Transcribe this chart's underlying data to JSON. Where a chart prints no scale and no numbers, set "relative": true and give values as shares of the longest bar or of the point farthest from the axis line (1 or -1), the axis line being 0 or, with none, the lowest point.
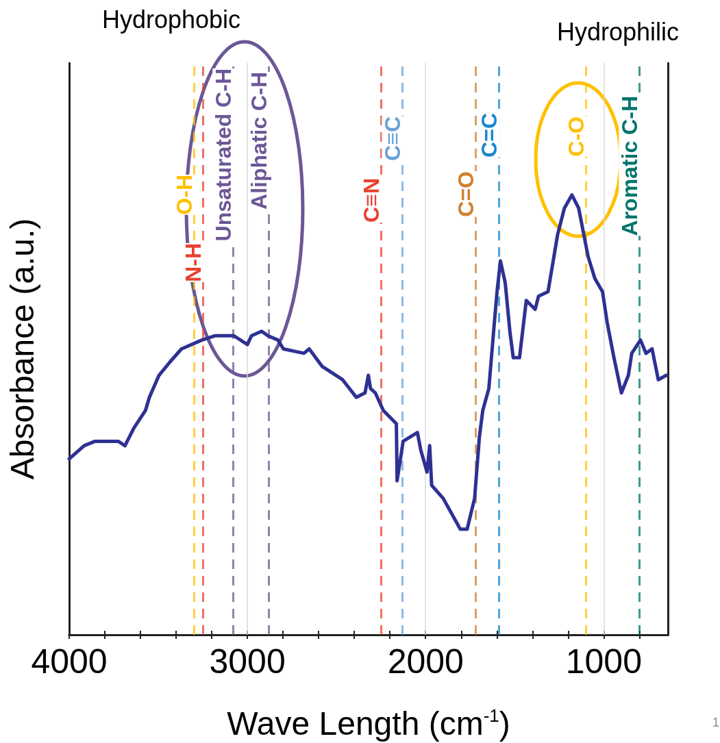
{
  "chart_data": {
    "type": "line",
    "relative": true,
    "xlabel": "Wave Length (cm$^{-1}$)",
    "ylabel": "Absorbance (a.u.)",
    "annotations": [
      "Hydrophobic",
      "Hydrophilic",
      "1"
    ],
    "xlim": [
      4000,
      640
    ],
    "xticks": [
      4000,
      {
        "value": 3800,
        "label": null
      },
      {
        "value": 3600,
        "label": null
      },
      {
        "value": 3400,
        "label": null
      },
      {
        "value": 3200,
        "label": null
      },
      3000,
      {
        "value": 2800,
        "label": null
      },
      {
        "value": 2600,
        "label": null
      },
      {
        "value": 2400,
        "label": null
      },
      {
        "value": 2200,
        "label": null
      },
      2000,
      {
        "value": 1800,
        "label": null
      },
      {
        "value": 1600,
        "label": null
      },
      {
        "value": 1400,
        "label": null
      },
      {
        "value": 1200,
        "label": null
      },
      1000,
      {
        "value": 800,
        "label": null
      }
    ],
    "grid": "x",
    "marker": "none",
    "line_style": "solid",
    "x": [
      4000,
      3916,
      3855,
      3763,
      3725,
      3687,
      3637,
      3572,
      3550,
      3496,
      3435,
      3370,
      3256,
      3179,
      3076,
      3000,
      2977,
      2920,
      2885,
      2828,
      2798,
      2683,
      2653,
      2580,
      2466,
      2389,
      2340,
      2321,
      2309,
      2282,
      2237,
      2164,
      2160,
      2126,
      2046,
      2027,
      1992,
      1977,
      1966,
      1901,
      1805,
      1767,
      1725,
      1698,
      1679,
      1645,
      1614,
      1599,
      1580,
      1553,
      1527,
      1508,
      1473,
      1435,
      1385,
      1366,
      1313,
      1259,
      1221,
      1179,
      1141,
      1088,
      1050,
      1007,
      981,
      943,
      901,
      862,
      843,
      794,
      763,
      729,
      694,
      649
    ],
    "series": [
      {
        "color": "#2e3192",
        "values": [
          0.4,
          0.43,
          0.44,
          0.44,
          0.44,
          0.43,
          0.47,
          0.51,
          0.54,
          0.59,
          0.62,
          0.65,
          0.67,
          0.68,
          0.68,
          0.66,
          0.68,
          0.69,
          0.68,
          0.67,
          0.65,
          0.64,
          0.65,
          0.61,
          0.58,
          0.54,
          0.55,
          0.59,
          0.56,
          0.55,
          0.51,
          0.48,
          0.35,
          0.44,
          0.46,
          0.42,
          0.37,
          0.43,
          0.34,
          0.31,
          0.24,
          0.24,
          0.31,
          0.45,
          0.51,
          0.56,
          0.71,
          0.78,
          0.85,
          0.8,
          0.69,
          0.63,
          0.63,
          0.76,
          0.74,
          0.77,
          0.78,
          0.91,
          0.97,
          1,
          0.97,
          0.86,
          0.81,
          0.78,
          0.71,
          0.63,
          0.55,
          0.59,
          0.64,
          0.67,
          0.64,
          0.65,
          0.58,
          0.59
        ]
      }
    ],
    "ref_lines": [
      {
        "axis": "x",
        "value": 3300,
        "label": "O-H",
        "color": "#ffc000",
        "line_style": "dashed"
      },
      {
        "axis": "x",
        "value": 3250,
        "label": "N-H",
        "color": "#e8412f",
        "line_style": "dashed"
      },
      {
        "axis": "x",
        "value": 3080,
        "label": "Unsaturated C-H",
        "color": "#6c5796",
        "line_style": "dashed"
      },
      {
        "axis": "x",
        "value": 2880,
        "label": "Aliphatic C-H",
        "color": "#6c5796",
        "line_style": "dashed"
      },
      {
        "axis": "x",
        "value": 2250,
        "label": "C≡N",
        "color": "#e8412f",
        "line_style": "dashed"
      },
      {
        "axis": "x",
        "value": 2130,
        "label": "C≡C",
        "color": "#6aa2d8",
        "line_style": "dashed"
      },
      {
        "axis": "x",
        "value": 1720,
        "label": "C=O",
        "color": "#d0802e",
        "line_style": "dashed"
      },
      {
        "axis": "x",
        "value": 1590,
        "label": "C=C",
        "color": "#1a86cf",
        "line_style": "dashed"
      },
      {
        "axis": "x",
        "value": 1100,
        "label": "C-O",
        "color": "#ffc000",
        "line_style": "dashed"
      },
      {
        "axis": "x",
        "value": 800,
        "label": "Aromatic C-H",
        "color": "#00756a",
        "line_style": "dashed"
      }
    ]
  }
}
